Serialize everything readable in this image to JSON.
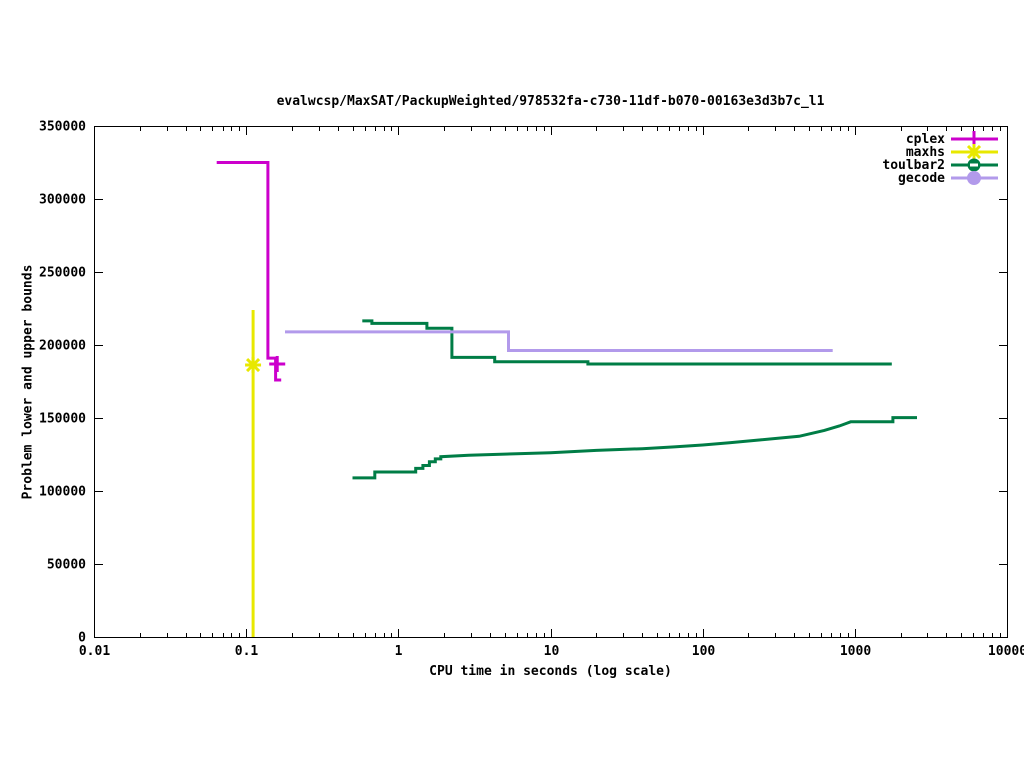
{
  "chart_data": {
    "type": "line",
    "title": "evalwcsp/MaxSAT/PackupWeighted/978532fa-c730-11df-b070-00163e3d3b7c_l1",
    "xlabel": "CPU time in seconds (log scale)",
    "ylabel": "Problem lower and upper bounds",
    "x_scale": "log",
    "xlim": [
      0.01,
      10000
    ],
    "ylim": [
      0,
      350000
    ],
    "grid": false,
    "legend_position": "top-right-inside",
    "x_ticks": [
      [
        0.01,
        "0.01"
      ],
      [
        0.1,
        "0.1"
      ],
      [
        1,
        "1"
      ],
      [
        10,
        "10"
      ],
      [
        100,
        "100"
      ],
      [
        1000,
        "1000"
      ],
      [
        10000,
        "10000"
      ]
    ],
    "y_ticks": [
      [
        0,
        "0"
      ],
      [
        50000,
        "50000"
      ],
      [
        100000,
        "100000"
      ],
      [
        150000,
        "150000"
      ],
      [
        200000,
        "200000"
      ],
      [
        250000,
        "250000"
      ],
      [
        300000,
        "300000"
      ],
      [
        350000,
        "350000"
      ]
    ],
    "series": [
      {
        "name": "cplex",
        "color": "#cc00cc",
        "marker": "plus",
        "lines": [
          [
            [
              0.064,
              325000
            ],
            [
              0.139,
              325000
            ],
            [
              0.139,
              191000
            ],
            [
              0.156,
              191000
            ],
            [
              0.156,
              176000
            ],
            [
              0.17,
              176000
            ]
          ]
        ],
        "marker_points": [
          [
            0.16,
            187000
          ]
        ]
      },
      {
        "name": "maxhs",
        "color": "#e8e800",
        "marker": "star",
        "lines": [
          [
            [
              0.111,
              224000
            ],
            [
              0.111,
              0
            ]
          ]
        ],
        "marker_points": [
          [
            0.111,
            186300
          ]
        ]
      },
      {
        "name": "toulbar2",
        "color": "#007d46",
        "marker": "circle-dash",
        "lines": [
          [
            [
              0.58,
              216500
            ],
            [
              0.67,
              216500
            ],
            [
              0.67,
              214800
            ],
            [
              1.54,
              214800
            ],
            [
              1.54,
              211500
            ],
            [
              2.25,
              211500
            ],
            [
              2.25,
              191500
            ],
            [
              4.3,
              191500
            ],
            [
              4.3,
              188500
            ],
            [
              17.6,
              188500
            ],
            [
              17.6,
              187000
            ],
            [
              1750,
              187000
            ]
          ],
          [
            [
              0.5,
              109000
            ],
            [
              0.7,
              109000
            ],
            [
              0.7,
              113000
            ],
            [
              1.3,
              113000
            ],
            [
              1.3,
              115500
            ],
            [
              1.45,
              115500
            ],
            [
              1.45,
              117500
            ],
            [
              1.6,
              117500
            ],
            [
              1.6,
              120000
            ],
            [
              1.75,
              120000
            ],
            [
              1.75,
              122000
            ],
            [
              1.9,
              122000
            ],
            [
              1.9,
              123500
            ],
            [
              2.9,
              124500
            ],
            [
              6,
              125500
            ],
            [
              10,
              126200
            ],
            [
              20,
              127800
            ],
            [
              40,
              129000
            ],
            [
              65,
              130200
            ],
            [
              100,
              131500
            ],
            [
              150,
              133000
            ],
            [
              240,
              135000
            ],
            [
              430,
              137500
            ],
            [
              630,
              141500
            ],
            [
              790,
              144500
            ],
            [
              890,
              146500
            ],
            [
              940,
              147400
            ],
            [
              1780,
              147400
            ],
            [
              1780,
              150300
            ],
            [
              2560,
              150300
            ]
          ]
        ],
        "marker_points": []
      },
      {
        "name": "gecode",
        "color": "#b29aeb",
        "marker": "dot",
        "lines": [
          [
            [
              0.18,
              209000
            ],
            [
              5.3,
              209000
            ],
            [
              5.3,
              196200
            ],
            [
              715,
              196200
            ]
          ]
        ],
        "marker_points": []
      }
    ]
  }
}
